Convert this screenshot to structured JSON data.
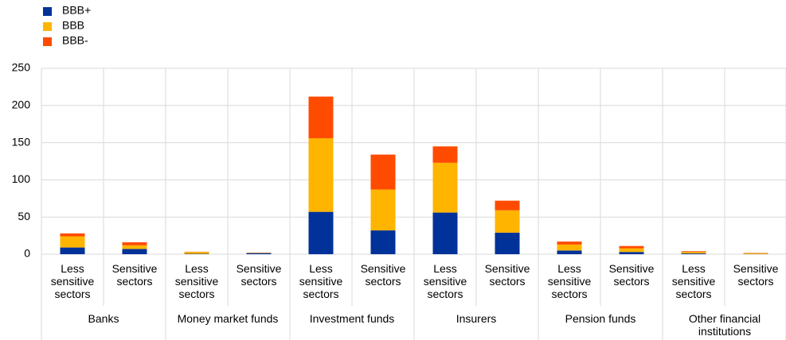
{
  "chart_data": {
    "type": "stacked_bar",
    "groups": [
      {
        "name": "Banks",
        "categories": [
          "Less sensitive sectors",
          "Sensitive sectors"
        ]
      },
      {
        "name": "Money market funds",
        "categories": [
          "Less sensitive sectors",
          "Sensitive sectors"
        ]
      },
      {
        "name": "Investment funds",
        "categories": [
          "Less sensitive sectors",
          "Sensitive sectors"
        ]
      },
      {
        "name": "Insurers",
        "categories": [
          "Less sensitive sectors",
          "Sensitive sectors"
        ]
      },
      {
        "name": "Pension funds",
        "categories": [
          "Less sensitive sectors",
          "Sensitive sectors"
        ]
      },
      {
        "name": "Other financial institutions",
        "categories": [
          "Less sensitive sectors",
          "Sensitive sectors"
        ]
      }
    ],
    "series": [
      {
        "name": "BBB+",
        "color": "#003299",
        "values": [
          9,
          7,
          0.5,
          1.5,
          57,
          32,
          56,
          29,
          5,
          3,
          1,
          0.3
        ]
      },
      {
        "name": "BBB",
        "color": "#ffb400",
        "values": [
          15,
          5,
          2.5,
          0.5,
          99,
          55,
          67,
          30,
          8,
          5,
          2,
          1.2
        ]
      },
      {
        "name": "BBB-",
        "color": "#ff4b00",
        "values": [
          4,
          4,
          0.3,
          0.2,
          56,
          47,
          22,
          13,
          4,
          3,
          1,
          0.3
        ]
      }
    ],
    "ylim": [
      0,
      250
    ],
    "yticks": [
      0,
      50,
      100,
      150,
      200,
      250
    ],
    "grid": true,
    "legend": "top-left"
  }
}
